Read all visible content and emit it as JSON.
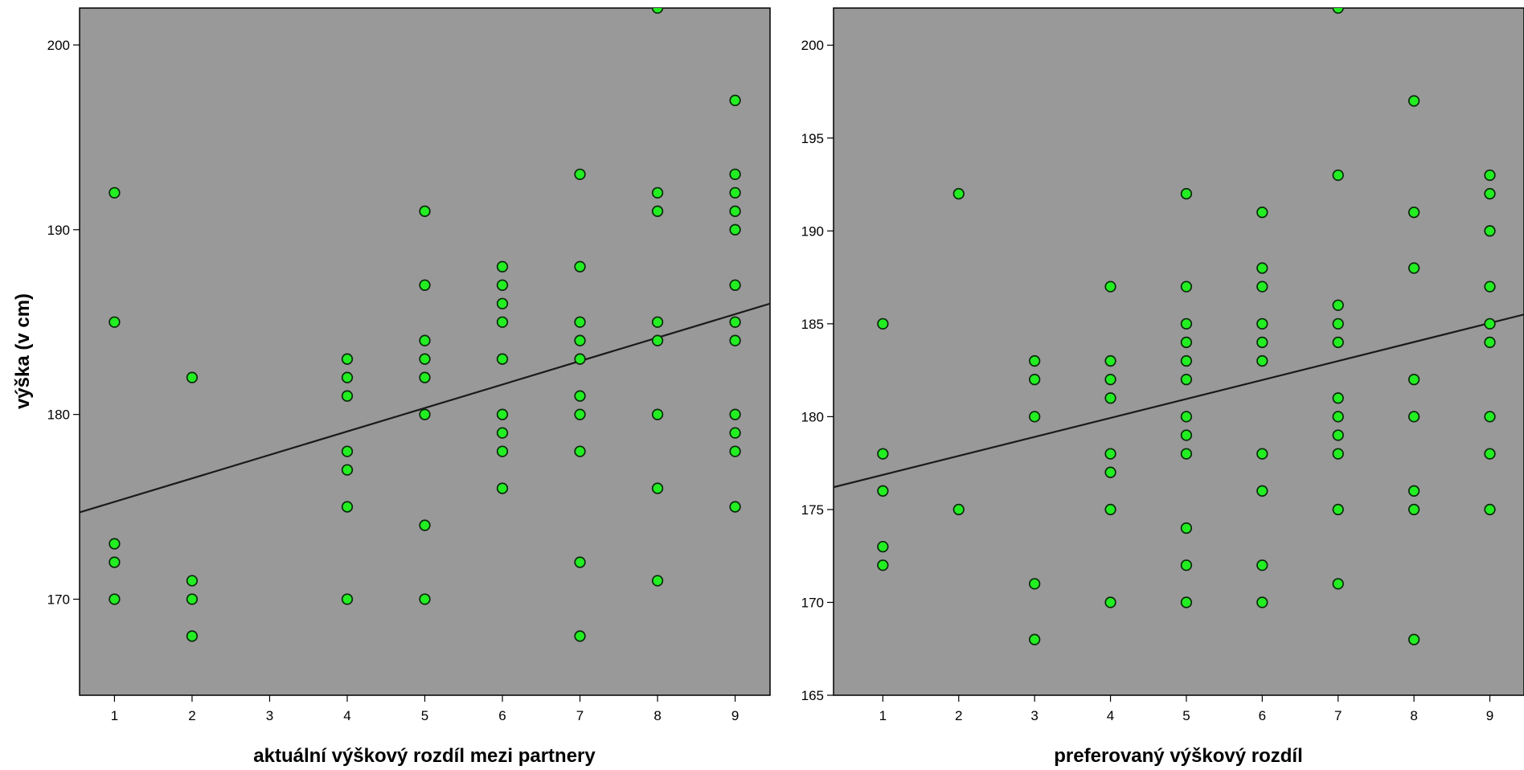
{
  "chart_data": [
    {
      "type": "scatter",
      "xlabel": "aktuální výškový rozdíl mezi partnery",
      "ylabel": "výška (v cm)",
      "xlim": [
        0.55,
        9.45
      ],
      "ylim": [
        164.8,
        202
      ],
      "xticks": [
        1,
        2,
        3,
        4,
        5,
        6,
        7,
        8,
        9
      ],
      "yticks": [
        170,
        180,
        190,
        200
      ],
      "fit_line": {
        "x": [
          0.55,
          9.45
        ],
        "y": [
          174.7,
          186.0
        ]
      },
      "points": [
        [
          1,
          192
        ],
        [
          1,
          185
        ],
        [
          1,
          173
        ],
        [
          1,
          172
        ],
        [
          1,
          170
        ],
        [
          2,
          182
        ],
        [
          2,
          171
        ],
        [
          2,
          170
        ],
        [
          2,
          168
        ],
        [
          4,
          183
        ],
        [
          4,
          182
        ],
        [
          4,
          181
        ],
        [
          4,
          178
        ],
        [
          4,
          177
        ],
        [
          4,
          175
        ],
        [
          4,
          170
        ],
        [
          5,
          191
        ],
        [
          5,
          187
        ],
        [
          5,
          184
        ],
        [
          5,
          183
        ],
        [
          5,
          182
        ],
        [
          5,
          180
        ],
        [
          5,
          174
        ],
        [
          5,
          170
        ],
        [
          6,
          188
        ],
        [
          6,
          187
        ],
        [
          6,
          186
        ],
        [
          6,
          185
        ],
        [
          6,
          183
        ],
        [
          6,
          180
        ],
        [
          6,
          179
        ],
        [
          6,
          178
        ],
        [
          6,
          176
        ],
        [
          7,
          193
        ],
        [
          7,
          188
        ],
        [
          7,
          185
        ],
        [
          7,
          184
        ],
        [
          7,
          183
        ],
        [
          7,
          181
        ],
        [
          7,
          180
        ],
        [
          7,
          178
        ],
        [
          7,
          172
        ],
        [
          7,
          168
        ],
        [
          8,
          202
        ],
        [
          8,
          192
        ],
        [
          8,
          191
        ],
        [
          8,
          185
        ],
        [
          8,
          184
        ],
        [
          8,
          180
        ],
        [
          8,
          176
        ],
        [
          8,
          171
        ],
        [
          9,
          197
        ],
        [
          9,
          193
        ],
        [
          9,
          192
        ],
        [
          9,
          191
        ],
        [
          9,
          190
        ],
        [
          9,
          187
        ],
        [
          9,
          185
        ],
        [
          9,
          184
        ],
        [
          9,
          180
        ],
        [
          9,
          179
        ],
        [
          9,
          178
        ],
        [
          9,
          175
        ]
      ],
      "colors": {
        "plot_bg": "#999999",
        "marker": "#22ee22",
        "marker_edge": "#0b2a0b",
        "line": "#1a1a1a"
      }
    },
    {
      "type": "scatter",
      "xlabel": "preferovaný výškový rozdíl",
      "ylabel": "",
      "xlim": [
        0.35,
        9.45
      ],
      "ylim": [
        165,
        202
      ],
      "xticks": [
        1,
        2,
        3,
        4,
        5,
        6,
        7,
        8,
        9
      ],
      "yticks": [
        165,
        170,
        175,
        180,
        185,
        190,
        195,
        200
      ],
      "fit_line": {
        "x": [
          0.35,
          9.45
        ],
        "y": [
          176.2,
          185.5
        ]
      },
      "points": [
        [
          1,
          185
        ],
        [
          1,
          178
        ],
        [
          1,
          176
        ],
        [
          1,
          173
        ],
        [
          1,
          172
        ],
        [
          2,
          192
        ],
        [
          2,
          175
        ],
        [
          3,
          183
        ],
        [
          3,
          182
        ],
        [
          3,
          180
        ],
        [
          3,
          171
        ],
        [
          3,
          168
        ],
        [
          4,
          187
        ],
        [
          4,
          183
        ],
        [
          4,
          182
        ],
        [
          4,
          181
        ],
        [
          4,
          178
        ],
        [
          4,
          177
        ],
        [
          4,
          175
        ],
        [
          4,
          170
        ],
        [
          5,
          192
        ],
        [
          5,
          187
        ],
        [
          5,
          185
        ],
        [
          5,
          184
        ],
        [
          5,
          183
        ],
        [
          5,
          182
        ],
        [
          5,
          180
        ],
        [
          5,
          179
        ],
        [
          5,
          178
        ],
        [
          5,
          174
        ],
        [
          5,
          172
        ],
        [
          5,
          170
        ],
        [
          6,
          191
        ],
        [
          6,
          188
        ],
        [
          6,
          187
        ],
        [
          6,
          185
        ],
        [
          6,
          184
        ],
        [
          6,
          183
        ],
        [
          6,
          178
        ],
        [
          6,
          176
        ],
        [
          6,
          172
        ],
        [
          6,
          170
        ],
        [
          7,
          202
        ],
        [
          7,
          193
        ],
        [
          7,
          186
        ],
        [
          7,
          185
        ],
        [
          7,
          184
        ],
        [
          7,
          181
        ],
        [
          7,
          180
        ],
        [
          7,
          179
        ],
        [
          7,
          178
        ],
        [
          7,
          175
        ],
        [
          7,
          171
        ],
        [
          8,
          197
        ],
        [
          8,
          191
        ],
        [
          8,
          188
        ],
        [
          8,
          182
        ],
        [
          8,
          180
        ],
        [
          8,
          176
        ],
        [
          8,
          175
        ],
        [
          8,
          168
        ],
        [
          9,
          193
        ],
        [
          9,
          192
        ],
        [
          9,
          190
        ],
        [
          9,
          187
        ],
        [
          9,
          185
        ],
        [
          9,
          184
        ],
        [
          9,
          180
        ],
        [
          9,
          178
        ],
        [
          9,
          175
        ]
      ],
      "colors": {
        "plot_bg": "#999999",
        "marker": "#22ee22",
        "marker_edge": "#0b2a0b",
        "line": "#1a1a1a"
      }
    }
  ]
}
